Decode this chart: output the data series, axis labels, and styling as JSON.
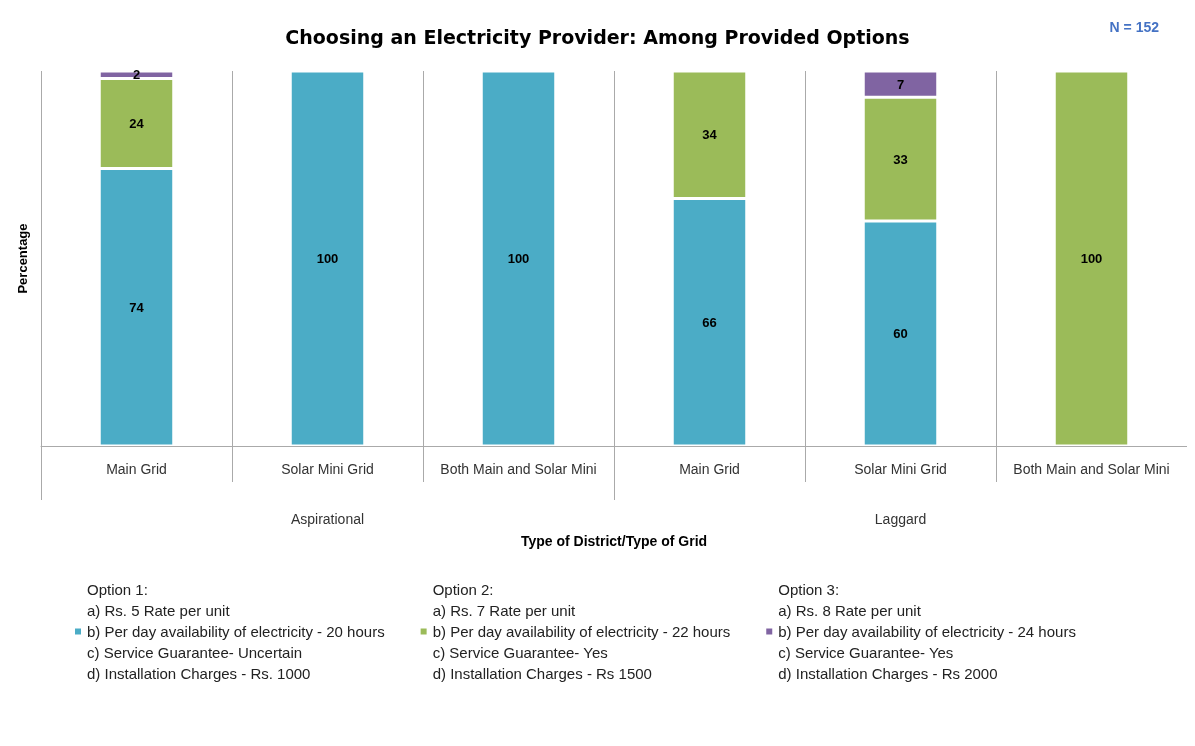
{
  "chart_data": {
    "type": "bar",
    "title": "Choosing an Electricity Provider: Among Provided Options",
    "categories": [
      "Main Grid",
      "Solar Mini Grid",
      "Both Main and Solar Mini",
      "Main Grid",
      "Solar Mini Grid",
      "Both Main and Solar Mini"
    ],
    "series": [
      {
        "name": "Option 1:\na) Rs. 5 Rate per unit\nb) Per day availability of electricity - 20 hours\nc) Service Guarantee- Uncertain\nd) Installation Charges - Rs. 1000",
        "color": "#4bacc6",
        "values": [
          74,
          100,
          100,
          66,
          60,
          null
        ]
      },
      {
        "name": "Option 2:\na) Rs. 7 Rate per unit\nb) Per day availability of electricity - 22 hours\nc) Service Guarantee- Yes\nd) Installation Charges - Rs 1500",
        "color": "#9bbb59",
        "values": [
          24,
          null,
          null,
          34,
          33,
          100
        ]
      },
      {
        "name": "Option 3:\na) Rs. 8 Rate per unit\nb) Per day availability of electricity - 24 hours\nc) Service Guarantee- Yes\nd) Installation Charges - Rs 2000",
        "color": "#8064a2",
        "values": [
          2,
          null,
          null,
          null,
          7,
          null
        ]
      }
    ],
    "stacked": true,
    "data_labels": true,
    "ylim": [
      0,
      100
    ],
    "tick_labels": "x",
    "xlabel": "Type of District/Type of Grid",
    "ylabel": "Percentage",
    "annotations": [
      "N = 152",
      "Aspirational",
      "Laggard"
    ],
    "grid": "x",
    "legend": "bottom"
  }
}
